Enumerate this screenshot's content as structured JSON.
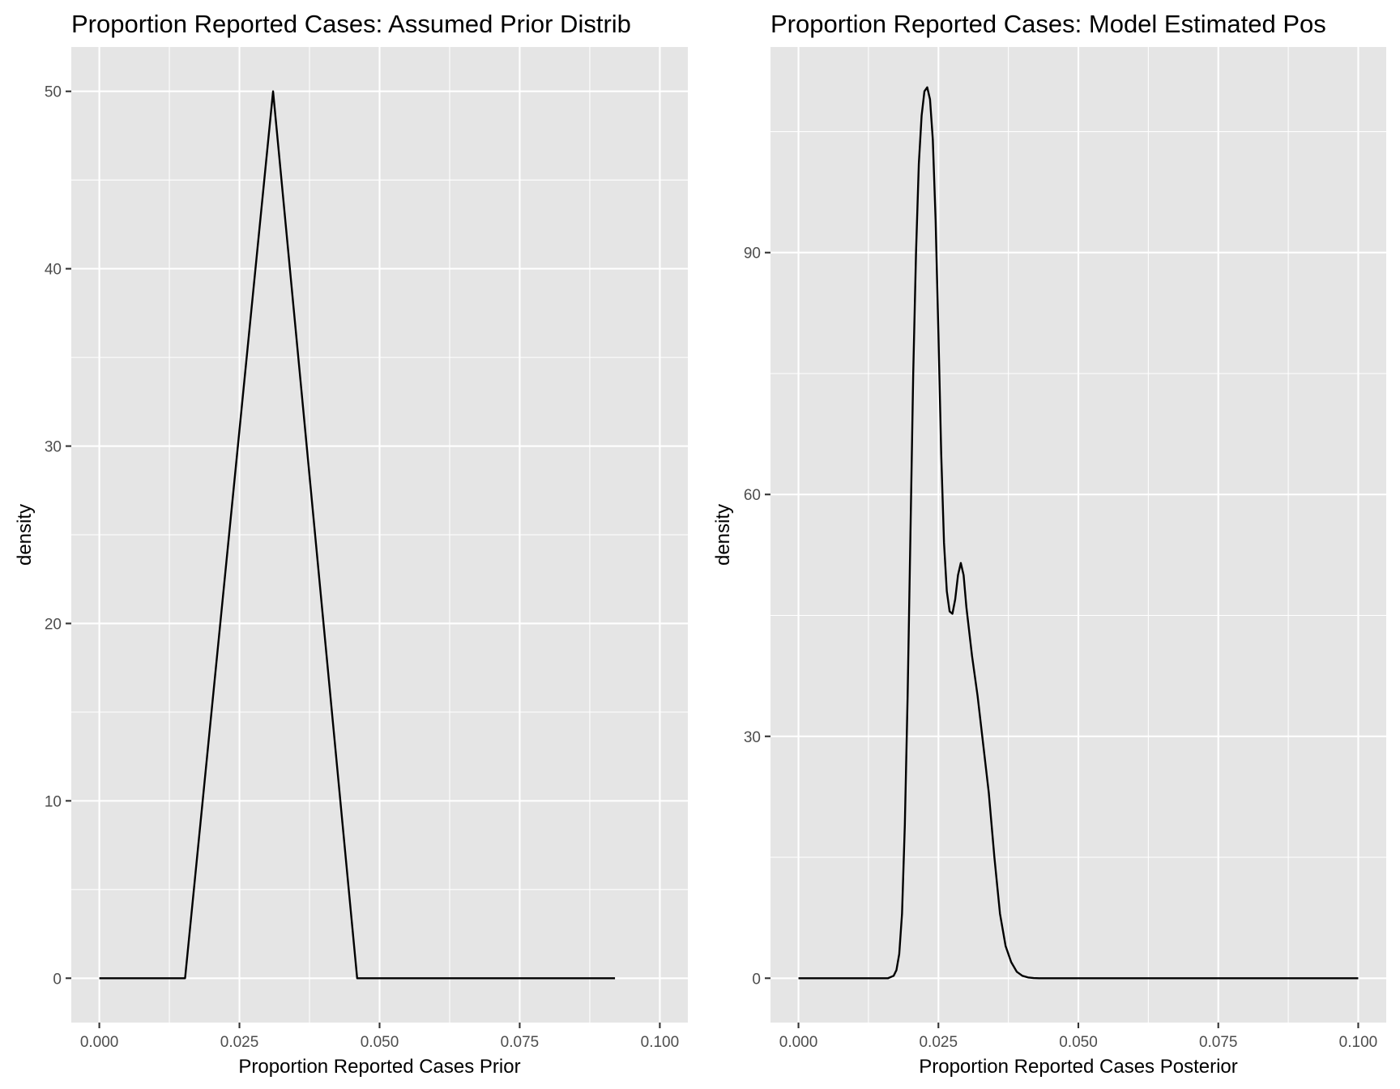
{
  "chart_data": [
    {
      "type": "line",
      "title": "Proportion Reported Cases: Assumed Prior Distrib",
      "xlabel": "Proportion Reported Cases Prior",
      "ylabel": "density",
      "xlim": [
        -0.005,
        0.105
      ],
      "ylim": [
        -2.5,
        52.5
      ],
      "x_ticks": [
        0,
        0.025,
        0.05,
        0.075,
        0.1
      ],
      "x_tick_labels": [
        "0.000",
        "0.025",
        "0.050",
        "0.075",
        "0.100"
      ],
      "x_minor_ticks": [
        0.0125,
        0.0375,
        0.0625,
        0.0875
      ],
      "y_ticks": [
        0,
        10,
        20,
        30,
        40,
        50
      ],
      "y_tick_labels": [
        "0",
        "10",
        "20",
        "30",
        "40",
        "50"
      ],
      "y_minor_ticks": [
        5,
        15,
        25,
        35,
        45
      ],
      "grid": true,
      "series": [
        {
          "x": [
            0,
            0.0153,
            0.031,
            0.046,
            0.092
          ],
          "y": [
            0,
            0,
            50,
            0,
            0
          ]
        }
      ]
    },
    {
      "type": "line",
      "title": "Proportion Reported Cases: Model Estimated Pos",
      "xlabel": "Proportion Reported Cases Posterior",
      "ylabel": "density",
      "xlim": [
        -0.005,
        0.105
      ],
      "ylim": [
        -5.5,
        115.5
      ],
      "x_ticks": [
        0,
        0.025,
        0.05,
        0.075,
        0.1
      ],
      "x_tick_labels": [
        "0.000",
        "0.025",
        "0.050",
        "0.075",
        "0.100"
      ],
      "x_minor_ticks": [
        0.0125,
        0.0375,
        0.0625,
        0.0875
      ],
      "y_ticks": [
        0,
        30,
        60,
        90
      ],
      "y_tick_labels": [
        "0",
        "30",
        "60",
        "90"
      ],
      "y_minor_ticks": [
        15,
        45,
        75,
        105
      ],
      "grid": true,
      "series": [
        {
          "x": [
            0,
            0.016,
            0.017,
            0.0175,
            0.018,
            0.0185,
            0.019,
            0.0195,
            0.02,
            0.0205,
            0.021,
            0.0215,
            0.022,
            0.0225,
            0.023,
            0.0235,
            0.024,
            0.0245,
            0.025,
            0.0255,
            0.026,
            0.0265,
            0.027,
            0.0275,
            0.028,
            0.0285,
            0.029,
            0.0295,
            0.03,
            0.031,
            0.032,
            0.033,
            0.034,
            0.035,
            0.036,
            0.037,
            0.038,
            0.039,
            0.04,
            0.041,
            0.042,
            0.043,
            0.1
          ],
          "y": [
            0,
            0,
            0.3,
            1,
            3,
            8,
            19,
            35,
            55,
            75,
            90,
            101,
            107,
            110,
            110.5,
            109,
            104,
            94,
            80,
            65,
            54,
            48,
            45.5,
            45.2,
            47,
            50,
            51.5,
            50,
            46,
            40,
            35,
            29,
            23,
            15,
            8,
            4,
            2,
            0.8,
            0.3,
            0.1,
            0.02,
            0,
            0
          ]
        }
      ]
    }
  ]
}
